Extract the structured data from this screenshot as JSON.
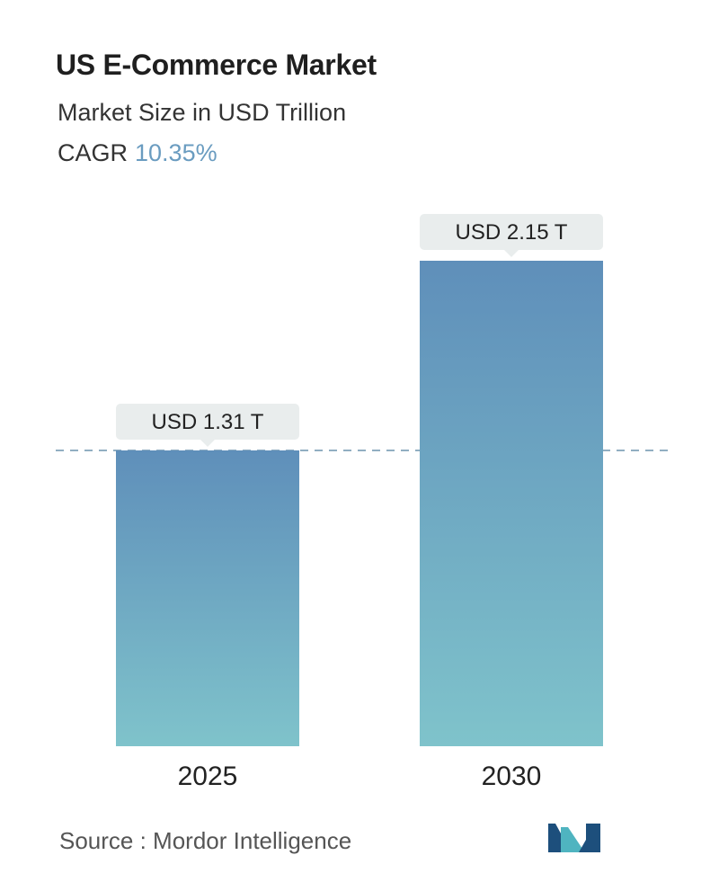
{
  "header": {
    "title": "US E-Commerce Market",
    "subtitle": "Market Size in USD Trillion",
    "cagr_label": "CAGR",
    "cagr_value": "10.35%"
  },
  "chart_data": {
    "type": "bar",
    "categories": [
      "2025",
      "2030"
    ],
    "values": [
      1.31,
      2.15
    ],
    "data_labels": [
      "USD 1.31 T",
      "USD 2.15 T"
    ],
    "reference_line": 1.31,
    "ylim": [
      0,
      2.15
    ],
    "grid": false,
    "legend": "none"
  },
  "footer": {
    "source": "Source :  Mordor Intelligence"
  },
  "colors": {
    "bar_top": "#5f8fba",
    "bar_bottom": "#7fc3cb",
    "label_bg": "#e9eded",
    "dashed_line": "#6d93ad",
    "cagr_accent": "#6a9cc0",
    "logo_blue": "#1d4f7c",
    "logo_teal": "#4fb4c0"
  }
}
